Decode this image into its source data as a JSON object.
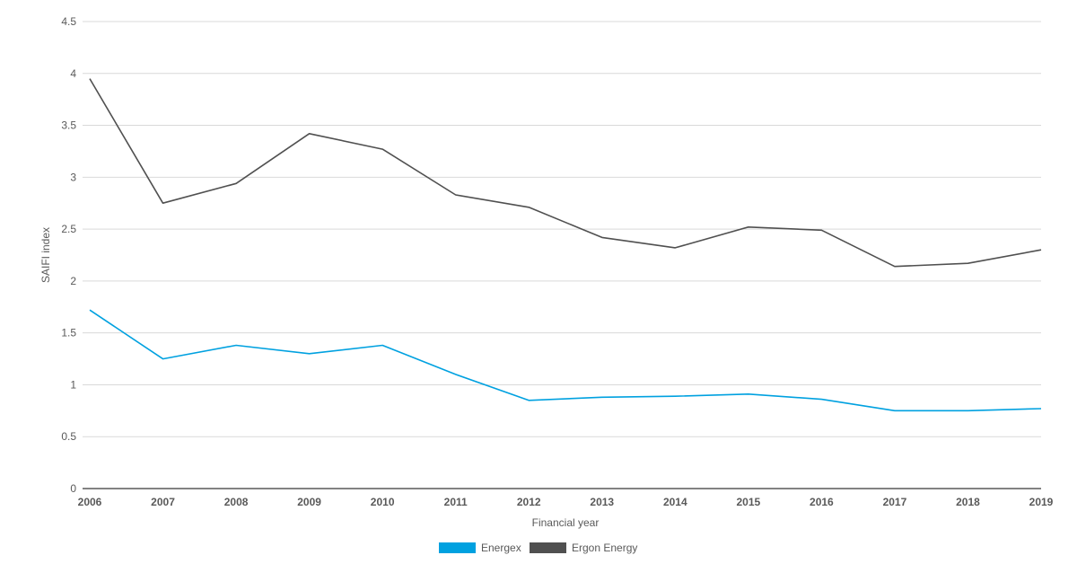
{
  "chart_data": {
    "type": "line",
    "x": [
      "2006",
      "2007",
      "2008",
      "2009",
      "2010",
      "2011",
      "2012",
      "2013",
      "2014",
      "2015",
      "2016",
      "2017",
      "2018",
      "2019"
    ],
    "xlabel": "Financial year",
    "ylabel": "SAIFI index",
    "ylim": [
      0,
      4.5
    ],
    "yticks": [
      "0",
      "0.5",
      "1",
      "1.5",
      "2",
      "2.5",
      "3",
      "3.5",
      "4",
      "4.5"
    ],
    "grid": true,
    "legend": "bottom-center",
    "series": [
      {
        "name": "Energex",
        "color": "#00a1e0",
        "values": [
          1.72,
          1.25,
          1.38,
          1.3,
          1.38,
          1.1,
          0.85,
          0.88,
          0.89,
          0.91,
          0.86,
          0.75,
          0.75,
          0.77
        ]
      },
      {
        "name": "Ergon Energy",
        "color": "#505050",
        "values": [
          3.95,
          2.75,
          2.94,
          3.42,
          3.27,
          2.83,
          2.71,
          2.42,
          2.32,
          2.52,
          2.49,
          2.14,
          2.17,
          2.3
        ]
      }
    ]
  }
}
